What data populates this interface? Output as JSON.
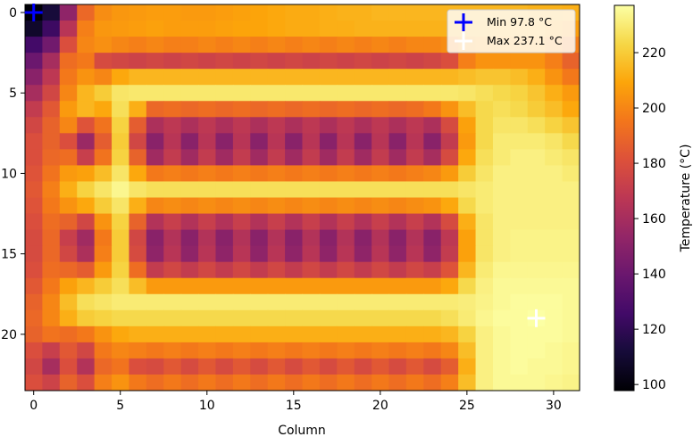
{
  "chart_data": {
    "type": "heatmap",
    "title": "",
    "xlabel": "Column",
    "ylabel": "",
    "colorbar_label": "Temperature (°C)",
    "colormap": "inferno",
    "xlim": [
      -0.5,
      31.5
    ],
    "ylim": [
      23.5,
      -0.5
    ],
    "x_ticks": [
      0,
      5,
      10,
      15,
      20,
      25,
      30
    ],
    "y_ticks": [
      0,
      5,
      10,
      15,
      20
    ],
    "x_tick_labels": [
      "0",
      "5",
      "10",
      "15",
      "20",
      "25",
      "30"
    ],
    "y_tick_labels": [
      "0",
      "5",
      "10",
      "15",
      "20"
    ],
    "colorbar_range": [
      97.8,
      237.1
    ],
    "colorbar_ticks": [
      100,
      120,
      140,
      160,
      180,
      200,
      220
    ],
    "colorbar_tick_labels": [
      "100",
      "120",
      "140",
      "160",
      "180",
      "200",
      "220"
    ],
    "grid": false,
    "legend_position": "top-right",
    "legend": [
      {
        "label": "Min 97.8 °C",
        "color": "#0000ff"
      },
      {
        "label": "Max 237.1 °C",
        "color": "#ffffff"
      }
    ],
    "markers": [
      {
        "name": "min",
        "x": 0,
        "y": 0,
        "value": 97.8,
        "color": "#0000ff"
      },
      {
        "name": "max",
        "x": 29,
        "y": 19,
        "value": 237.1,
        "color": "#ffffff"
      }
    ],
    "values": [
      [
        98,
        112,
        152,
        190,
        202,
        205,
        206,
        207,
        207,
        206,
        206,
        207,
        208,
        209,
        210,
        211,
        211,
        212,
        213,
        213,
        214,
        214,
        214,
        214,
        214,
        214,
        214,
        214,
        214,
        213,
        213,
        212
      ],
      [
        108,
        124,
        166,
        198,
        205,
        206,
        207,
        208,
        207,
        207,
        207,
        208,
        209,
        209,
        210,
        211,
        211,
        212,
        212,
        213,
        213,
        213,
        213,
        213,
        213,
        213,
        213,
        212,
        212,
        212,
        210,
        207
      ],
      [
        126,
        142,
        180,
        200,
        203,
        200,
        198,
        200,
        198,
        198,
        200,
        198,
        200,
        198,
        200,
        198,
        200,
        198,
        200,
        198,
        200,
        198,
        200,
        200,
        202,
        206,
        208,
        208,
        208,
        208,
        204,
        198
      ],
      [
        140,
        160,
        192,
        196,
        178,
        176,
        174,
        176,
        174,
        176,
        174,
        176,
        174,
        176,
        174,
        176,
        174,
        176,
        174,
        176,
        174,
        176,
        174,
        176,
        180,
        198,
        204,
        204,
        204,
        204,
        198,
        188
      ],
      [
        150,
        168,
        196,
        204,
        200,
        210,
        214,
        214,
        214,
        214,
        214,
        214,
        214,
        214,
        214,
        214,
        214,
        214,
        214,
        214,
        214,
        214,
        214,
        214,
        214,
        216,
        218,
        218,
        216,
        212,
        204,
        196
      ],
      [
        160,
        176,
        200,
        214,
        220,
        228,
        229,
        229,
        229,
        229,
        229,
        229,
        229,
        229,
        229,
        229,
        229,
        229,
        229,
        229,
        229,
        229,
        229,
        229,
        229,
        228,
        226,
        224,
        222,
        218,
        212,
        206
      ],
      [
        170,
        184,
        206,
        214,
        210,
        226,
        212,
        190,
        192,
        190,
        192,
        190,
        192,
        190,
        192,
        190,
        192,
        190,
        192,
        190,
        192,
        190,
        192,
        196,
        204,
        216,
        224,
        226,
        224,
        220,
        216,
        210
      ],
      [
        176,
        188,
        200,
        182,
        194,
        222,
        186,
        162,
        168,
        162,
        168,
        162,
        168,
        162,
        168,
        162,
        168,
        162,
        168,
        162,
        168,
        162,
        168,
        162,
        178,
        208,
        224,
        228,
        228,
        226,
        222,
        218
      ],
      [
        180,
        188,
        180,
        156,
        186,
        220,
        176,
        150,
        166,
        150,
        166,
        150,
        166,
        150,
        166,
        150,
        166,
        150,
        166,
        150,
        166,
        150,
        166,
        150,
        170,
        206,
        224,
        230,
        230,
        230,
        228,
        224
      ],
      [
        180,
        190,
        192,
        172,
        194,
        222,
        188,
        158,
        170,
        158,
        170,
        158,
        170,
        158,
        170,
        158,
        170,
        158,
        170,
        158,
        170,
        158,
        170,
        160,
        178,
        210,
        226,
        230,
        232,
        232,
        230,
        228
      ],
      [
        182,
        194,
        206,
        208,
        216,
        228,
        210,
        196,
        198,
        196,
        198,
        196,
        198,
        196,
        198,
        196,
        198,
        196,
        198,
        196,
        198,
        196,
        198,
        200,
        206,
        220,
        228,
        232,
        232,
        232,
        232,
        230
      ],
      [
        184,
        198,
        212,
        222,
        228,
        234,
        228,
        226,
        226,
        226,
        226,
        226,
        226,
        226,
        226,
        226,
        226,
        226,
        226,
        226,
        226,
        226,
        226,
        226,
        226,
        228,
        230,
        232,
        232,
        232,
        232,
        232
      ],
      [
        182,
        196,
        204,
        210,
        220,
        228,
        212,
        200,
        202,
        200,
        202,
        200,
        202,
        200,
        202,
        200,
        202,
        200,
        202,
        200,
        202,
        200,
        202,
        204,
        210,
        224,
        230,
        232,
        232,
        232,
        232,
        232
      ],
      [
        180,
        192,
        188,
        176,
        204,
        222,
        188,
        164,
        172,
        164,
        172,
        164,
        172,
        164,
        172,
        164,
        172,
        164,
        172,
        164,
        172,
        164,
        172,
        164,
        178,
        212,
        228,
        232,
        232,
        232,
        232,
        232
      ],
      [
        178,
        190,
        172,
        158,
        196,
        220,
        176,
        150,
        164,
        150,
        164,
        150,
        164,
        150,
        164,
        150,
        164,
        150,
        164,
        150,
        164,
        150,
        164,
        150,
        168,
        208,
        228,
        232,
        233,
        233,
        233,
        233
      ],
      [
        178,
        190,
        176,
        162,
        198,
        220,
        178,
        152,
        166,
        152,
        166,
        152,
        166,
        152,
        166,
        152,
        166,
        152,
        166,
        152,
        166,
        152,
        166,
        152,
        170,
        208,
        228,
        232,
        233,
        233,
        233,
        233
      ],
      [
        180,
        192,
        190,
        186,
        206,
        222,
        192,
        170,
        176,
        170,
        176,
        170,
        176,
        170,
        176,
        170,
        176,
        170,
        176,
        170,
        176,
        170,
        176,
        172,
        182,
        214,
        230,
        234,
        234,
        234,
        234,
        234
      ],
      [
        184,
        196,
        208,
        214,
        220,
        226,
        216,
        206,
        206,
        206,
        206,
        206,
        206,
        206,
        206,
        206,
        206,
        206,
        206,
        206,
        206,
        206,
        206,
        206,
        210,
        224,
        232,
        235,
        235,
        235,
        235,
        235
      ],
      [
        188,
        200,
        216,
        226,
        228,
        230,
        230,
        230,
        230,
        230,
        230,
        230,
        230,
        230,
        230,
        230,
        230,
        230,
        230,
        230,
        230,
        230,
        230,
        230,
        230,
        231,
        233,
        235,
        236,
        236,
        236,
        235
      ],
      [
        190,
        200,
        212,
        220,
        222,
        224,
        224,
        224,
        224,
        224,
        224,
        224,
        224,
        224,
        224,
        224,
        224,
        224,
        224,
        224,
        224,
        224,
        224,
        224,
        226,
        230,
        234,
        236,
        236,
        237.1,
        236,
        235
      ],
      [
        188,
        194,
        192,
        196,
        204,
        210,
        212,
        212,
        212,
        212,
        212,
        212,
        212,
        212,
        212,
        212,
        212,
        212,
        212,
        212,
        212,
        212,
        212,
        212,
        214,
        222,
        232,
        235,
        236,
        236,
        236,
        235
      ],
      [
        180,
        172,
        184,
        176,
        196,
        200,
        198,
        196,
        198,
        196,
        198,
        196,
        198,
        196,
        198,
        196,
        198,
        196,
        198,
        196,
        198,
        196,
        198,
        196,
        200,
        216,
        232,
        235,
        236,
        236,
        235,
        234
      ],
      [
        176,
        160,
        180,
        164,
        190,
        194,
        180,
        178,
        184,
        178,
        184,
        178,
        184,
        178,
        184,
        178,
        184,
        178,
        184,
        178,
        184,
        178,
        184,
        178,
        186,
        212,
        232,
        235,
        236,
        235,
        235,
        234
      ],
      [
        180,
        174,
        188,
        180,
        198,
        204,
        196,
        192,
        196,
        192,
        196,
        192,
        196,
        192,
        196,
        192,
        196,
        192,
        196,
        192,
        196,
        192,
        196,
        192,
        198,
        216,
        232,
        235,
        235,
        235,
        234,
        233
      ]
    ]
  }
}
